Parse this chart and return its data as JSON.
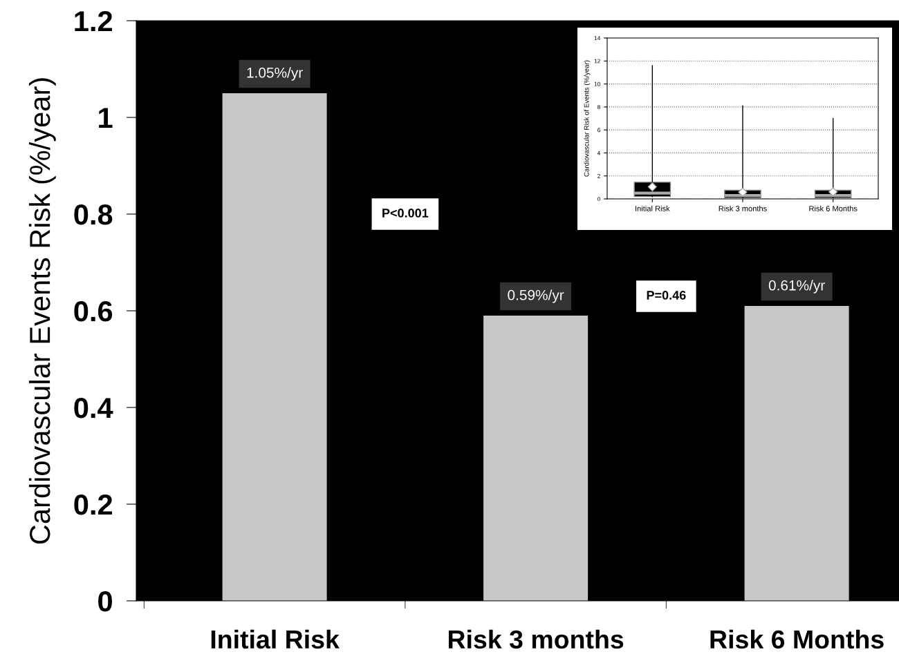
{
  "chart_data": [
    {
      "type": "bar",
      "ylabel": "Cardiovascular Events Risk (%/year)",
      "categories": [
        "Initial Risk",
        "Risk 3 months",
        "Risk 6 Months"
      ],
      "values": [
        1.05,
        0.59,
        0.61
      ],
      "value_labels": [
        "1.05%/yr",
        "0.59%/yr",
        "0.61%/yr"
      ],
      "color": "#c8c8c8",
      "ylim": [
        0,
        1.2
      ],
      "yticks": [
        0,
        0.2,
        0.4,
        0.6,
        0.8,
        1,
        1.2
      ],
      "grid": false,
      "annotations": [
        "P<0.001",
        "P=0.46"
      ]
    },
    {
      "type": "box",
      "ylabel": "Cardiovascular Risk of Events (%/year)",
      "categories": [
        "Initial Risk",
        "Risk 3 months",
        "Risk 6 Months"
      ],
      "boxes": [
        {
          "low": 0.2,
          "q1": 0.2,
          "median": 0.5,
          "q3": 1.45,
          "high": 11.6,
          "mean": 1.05
        },
        {
          "low": 0.1,
          "q1": 0.1,
          "median": 0.3,
          "q3": 0.75,
          "high": 8.1,
          "mean": 0.59
        },
        {
          "low": 0.1,
          "q1": 0.1,
          "median": 0.3,
          "q3": 0.75,
          "high": 7.0,
          "mean": 0.61
        }
      ],
      "color": "#000000",
      "ylim": [
        0,
        14
      ],
      "yticks": [
        0,
        2,
        4,
        6,
        8,
        10,
        12,
        14
      ],
      "grid": "y",
      "marker": "diamond"
    }
  ]
}
